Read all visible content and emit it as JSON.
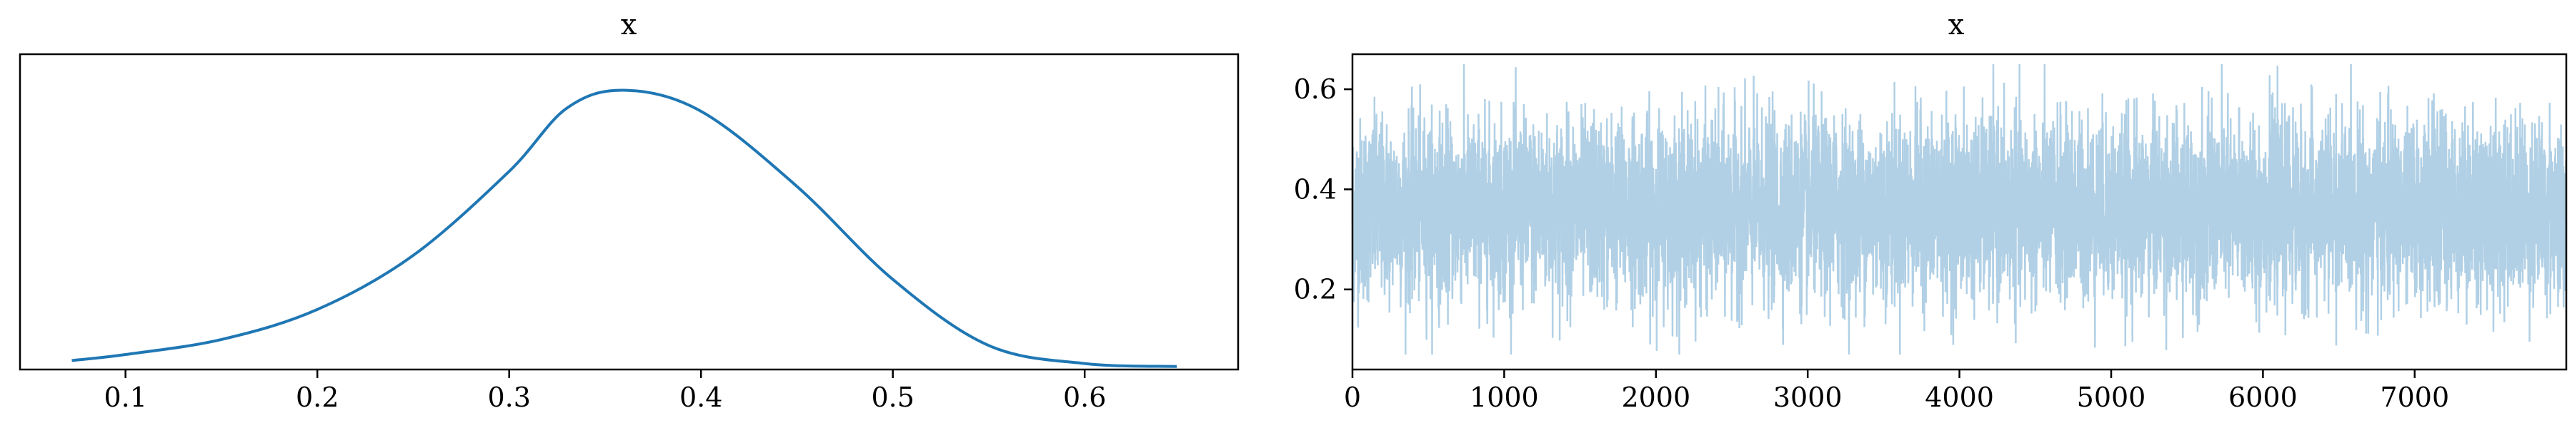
{
  "chart_data": [
    {
      "type": "line",
      "title": "x",
      "xlabel": "",
      "ylabel": "",
      "xlim": [
        0.045,
        0.68
      ],
      "ylim": [
        0,
        1.05
      ],
      "xticks": [
        "0.1",
        "0.2",
        "0.3",
        "0.4",
        "0.5",
        "0.6"
      ],
      "yticks": [],
      "grid": false,
      "series": [
        {
          "color": "#1f77b4",
          "x": [
            0.072,
            0.1,
            0.15,
            0.2,
            0.25,
            0.3,
            0.33,
            0.36,
            0.4,
            0.45,
            0.5,
            0.55,
            0.6,
            0.648
          ],
          "y": [
            0.03,
            0.05,
            0.1,
            0.2,
            0.38,
            0.66,
            0.87,
            0.93,
            0.86,
            0.61,
            0.3,
            0.08,
            0.02,
            0.01
          ]
        }
      ]
    },
    {
      "type": "line",
      "title": "x",
      "xlabel": "",
      "ylabel": "",
      "xlim": [
        0,
        7999
      ],
      "ylim": [
        0.04,
        0.67
      ],
      "xticks": [
        "0",
        "1000",
        "2000",
        "3000",
        "4000",
        "5000",
        "6000",
        "7000"
      ],
      "yticks": [
        "0.2",
        "0.4",
        "0.6"
      ],
      "grid": false,
      "series": [
        {
          "color": "#1f77b4",
          "opacity": 0.35,
          "n_samples": 8000,
          "mean": 0.36,
          "std": 0.09,
          "min": 0.07,
          "max": 0.65
        }
      ]
    }
  ]
}
